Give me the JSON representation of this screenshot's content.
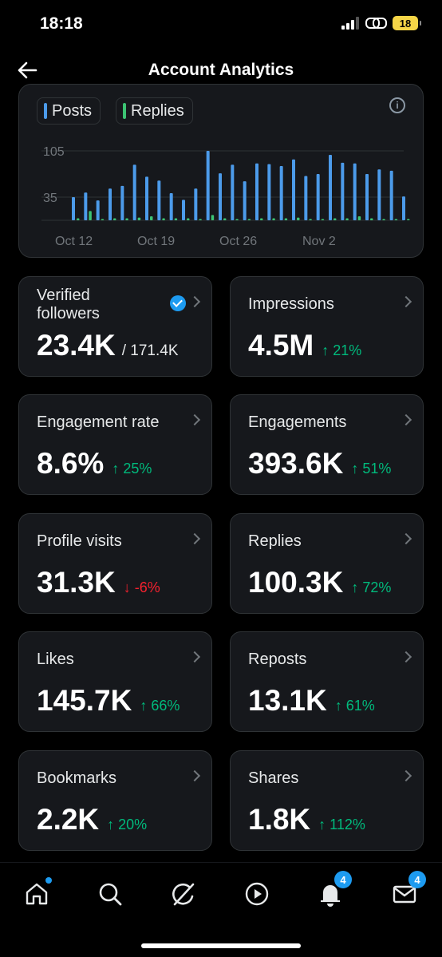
{
  "status_bar": {
    "time": "18:18",
    "battery": "18"
  },
  "header": {
    "title": "Account Analytics"
  },
  "chart": {
    "legend": [
      {
        "label": "Posts",
        "color": "#4c9bea"
      },
      {
        "label": "Replies",
        "color": "#3cc373"
      }
    ]
  },
  "chart_data": {
    "type": "bar",
    "y_ticks": [
      "105",
      "35"
    ],
    "x_ticks": [
      "Oct 12",
      "Oct 19",
      "Oct 26",
      "Nov 2"
    ],
    "ylim": [
      0,
      105
    ],
    "series": [
      {
        "name": "Posts",
        "color": "#4c9bea",
        "values": [
          35,
          42,
          30,
          48,
          52,
          84,
          66,
          60,
          41,
          31,
          48,
          105,
          71,
          84,
          59,
          86,
          85,
          82,
          92,
          67,
          70,
          99,
          87,
          86,
          70,
          77,
          75,
          36
        ]
      },
      {
        "name": "Replies",
        "color": "#3cc373",
        "values": [
          3,
          14,
          2,
          3,
          3,
          4,
          6,
          3,
          3,
          3,
          2,
          8,
          3,
          2,
          2,
          3,
          3,
          3,
          4,
          2,
          2,
          3,
          3,
          6,
          3,
          2,
          2,
          2
        ]
      }
    ]
  },
  "metrics": [
    {
      "label": "Verified followers",
      "value": "23.4K",
      "sub": "/ 171.4K",
      "change": "",
      "direction": ""
    },
    {
      "label": "Impressions",
      "value": "4.5M",
      "sub": "",
      "change": "↑ 21%",
      "direction": "up"
    },
    {
      "label": "Engagement rate",
      "value": "8.6%",
      "sub": "",
      "change": "↑ 25%",
      "direction": "up"
    },
    {
      "label": "Engagements",
      "value": "393.6K",
      "sub": "",
      "change": "↑ 51%",
      "direction": "up"
    },
    {
      "label": "Profile visits",
      "value": "31.3K",
      "sub": "",
      "change": "↓ -6%",
      "direction": "down"
    },
    {
      "label": "Replies",
      "value": "100.3K",
      "sub": "",
      "change": "↑ 72%",
      "direction": "up"
    },
    {
      "label": "Likes",
      "value": "145.7K",
      "sub": "",
      "change": "↑ 66%",
      "direction": "up"
    },
    {
      "label": "Reposts",
      "value": "13.1K",
      "sub": "",
      "change": "↑ 61%",
      "direction": "up"
    },
    {
      "label": "Bookmarks",
      "value": "2.2K",
      "sub": "",
      "change": "↑ 20%",
      "direction": "up"
    },
    {
      "label": "Shares",
      "value": "1.8K",
      "sub": "",
      "change": "↑ 112%",
      "direction": "up"
    }
  ],
  "nav": {
    "items": [
      "home-icon",
      "search-icon",
      "grok-icon",
      "video-icon",
      "notifications-icon",
      "messages-icon"
    ],
    "notifications_badge": "4",
    "messages_badge": "4"
  }
}
